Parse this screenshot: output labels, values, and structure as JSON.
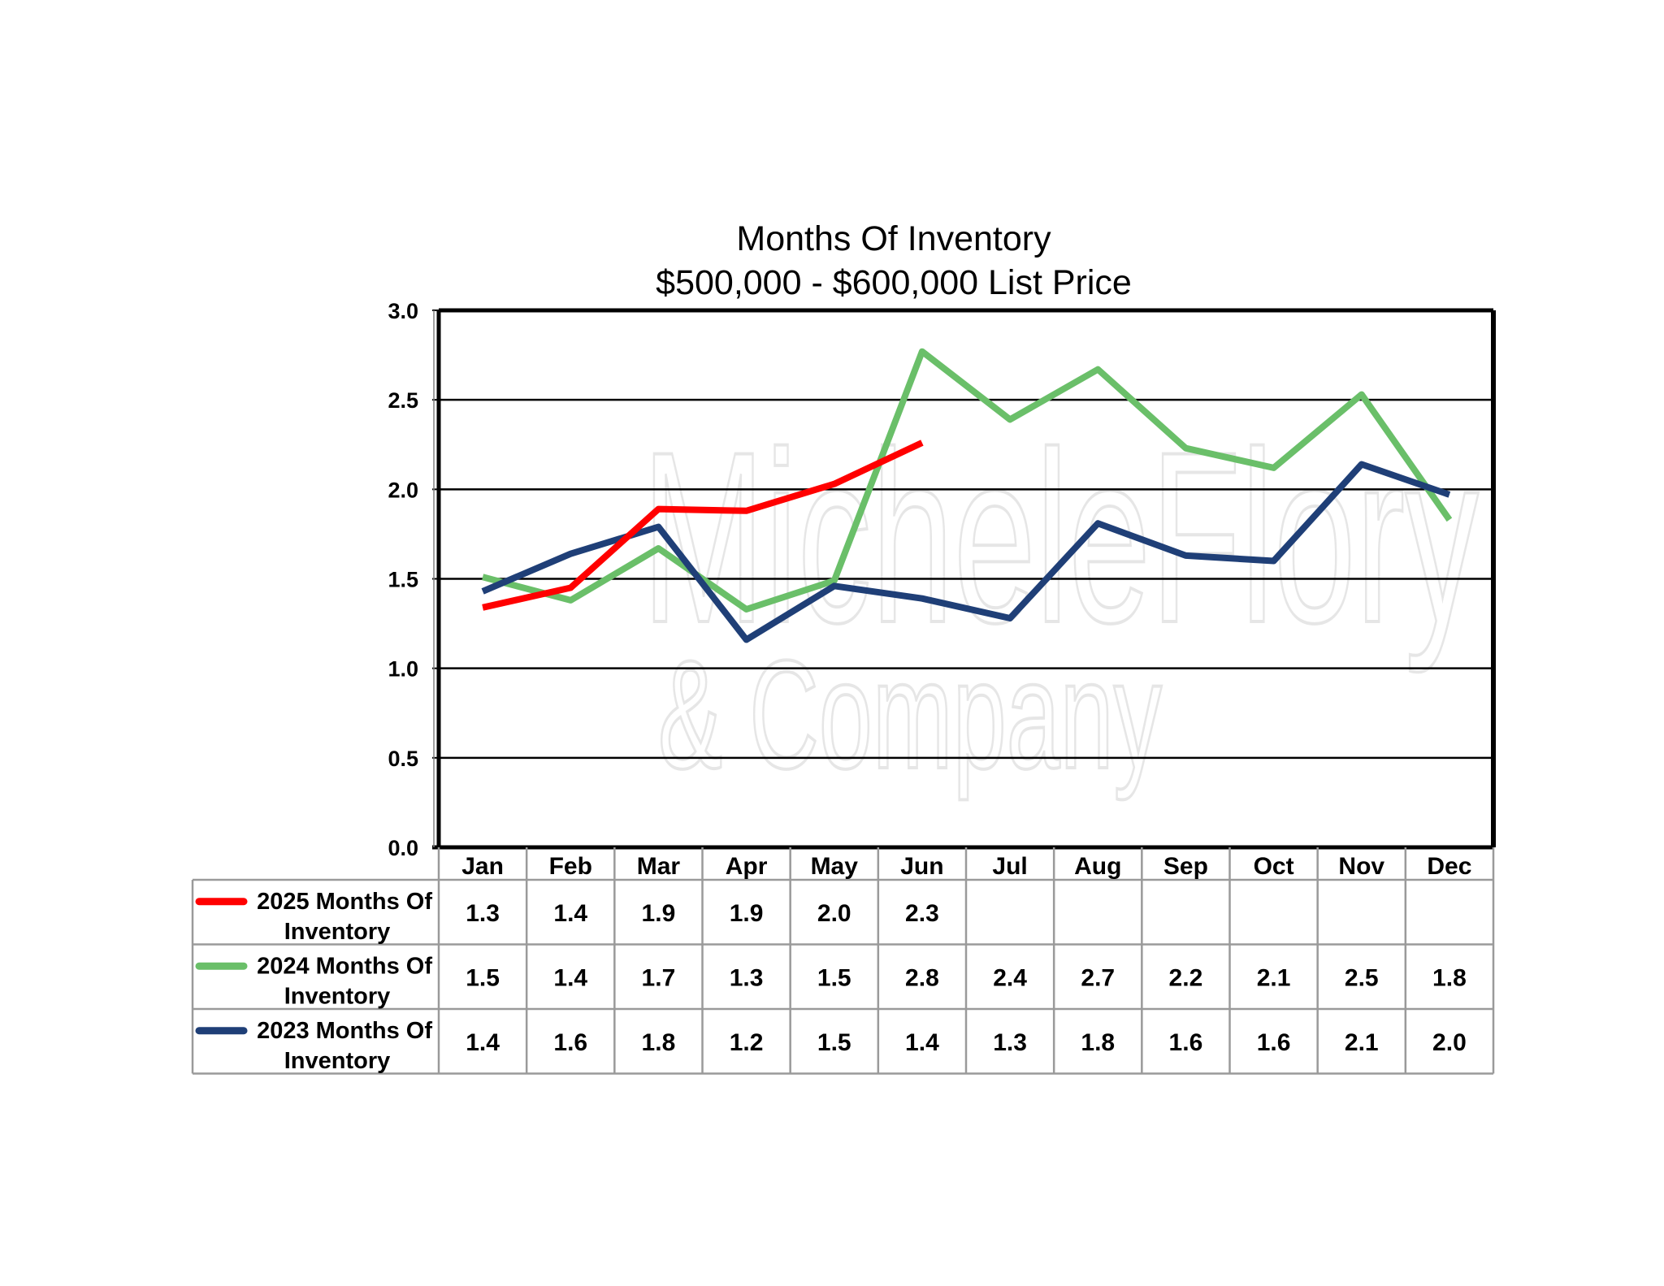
{
  "chart_data": {
    "type": "line",
    "title": "Months Of Inventory",
    "subtitle": "$500,000 - $600,000 List Price",
    "categories": [
      "Jan",
      "Feb",
      "Mar",
      "Apr",
      "May",
      "Jun",
      "Jul",
      "Aug",
      "Sep",
      "Oct",
      "Nov",
      "Dec"
    ],
    "ylim": [
      0,
      3.0
    ],
    "yticks": [
      "0.0",
      "0.5",
      "1.0",
      "1.5",
      "2.0",
      "2.5",
      "3.0"
    ],
    "grid": true,
    "legend": "data-table-bottom",
    "series": [
      {
        "name": "2025 Months Of Inventory",
        "name_lines": [
          "2025 Months Of",
          "Inventory"
        ],
        "color": "#ff0000",
        "values": [
          1.34,
          1.45,
          1.89,
          1.88,
          2.03,
          2.26,
          null,
          null,
          null,
          null,
          null,
          null
        ],
        "labels": [
          "1.3",
          "1.4",
          "1.9",
          "1.9",
          "2.0",
          "2.3",
          "",
          "",
          "",
          "",
          "",
          ""
        ]
      },
      {
        "name": "2024 Months Of Inventory",
        "name_lines": [
          "2024 Months Of",
          "Inventory"
        ],
        "color": "#6abf69",
        "values": [
          1.51,
          1.38,
          1.67,
          1.33,
          1.49,
          2.77,
          2.39,
          2.67,
          2.23,
          2.12,
          2.53,
          1.83
        ],
        "labels": [
          "1.5",
          "1.4",
          "1.7",
          "1.3",
          "1.5",
          "2.8",
          "2.4",
          "2.7",
          "2.2",
          "2.1",
          "2.5",
          "1.8"
        ]
      },
      {
        "name": "2023 Months Of Inventory",
        "name_lines": [
          "2023 Months Of",
          "Inventory"
        ],
        "color": "#1f3f77",
        "values": [
          1.43,
          1.64,
          1.79,
          1.16,
          1.46,
          1.39,
          1.28,
          1.81,
          1.63,
          1.6,
          2.14,
          1.97
        ],
        "labels": [
          "1.4",
          "1.6",
          "1.8",
          "1.2",
          "1.5",
          "1.4",
          "1.3",
          "1.8",
          "1.6",
          "1.6",
          "2.1",
          "2.0"
        ]
      }
    ]
  },
  "watermark": {
    "line1": "MicheleFlory",
    "line2": "& Company"
  }
}
